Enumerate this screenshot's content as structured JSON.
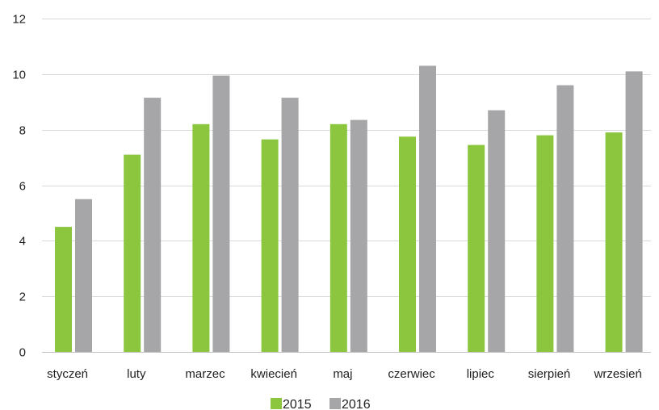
{
  "chart_data": {
    "type": "bar",
    "title": "",
    "xlabel": "",
    "ylabel": "",
    "categories": [
      "styczeń",
      "luty",
      "marzec",
      "kwiecień",
      "maj",
      "czerwiec",
      "lipiec",
      "sierpień",
      "wrzesień"
    ],
    "series": [
      {
        "name": "2015",
        "color": "#8cc63f",
        "values": [
          4.5,
          7.1,
          8.2,
          7.65,
          8.2,
          7.75,
          7.45,
          7.8,
          7.9
        ]
      },
      {
        "name": "2016",
        "color": "#a6a6a8",
        "values": [
          5.5,
          9.15,
          9.95,
          9.15,
          8.35,
          10.3,
          8.7,
          9.6,
          10.1
        ]
      }
    ],
    "ylim": [
      0,
      12
    ],
    "yticks": [
      0,
      2,
      4,
      6,
      8,
      10,
      12
    ],
    "grid": true,
    "legend": "bottom-center",
    "gridline_color": "#d9d9d9",
    "axis_color": "#bfbfbf"
  }
}
